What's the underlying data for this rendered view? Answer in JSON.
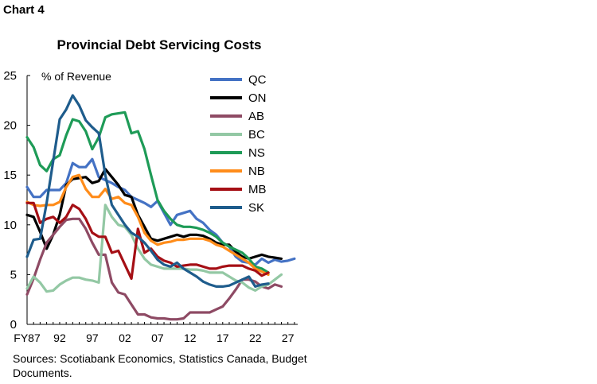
{
  "page": {
    "chart_label": "Chart 4",
    "title": "Provincial Debt Servicing Costs",
    "sources": "Sources: Scotiabank Economics, Statistics Canada, Budget Documents."
  },
  "chart_data": {
    "type": "line",
    "title": "Provincial Debt Servicing Costs",
    "ylabel": "% of Revenue",
    "xlabel": "",
    "x_tick_labels": [
      "FY87",
      "92",
      "97",
      "02",
      "07",
      "12",
      "17",
      "22",
      "27"
    ],
    "x_tick_years": [
      1987,
      1992,
      1997,
      2002,
      2007,
      2012,
      2017,
      2022,
      2027
    ],
    "xlim": [
      1987,
      2028.5
    ],
    "ylim": [
      0,
      25
    ],
    "y_ticks": [
      0,
      5,
      10,
      15,
      20,
      25
    ],
    "grid": false,
    "legend": "top-right",
    "series": [
      {
        "name": "QC",
        "color": "#4472C4",
        "x": [
          1987,
          1988,
          1989,
          1990,
          1991,
          1992,
          1993,
          1994,
          1995,
          1996,
          1997,
          1998,
          1999,
          2000,
          2001,
          2002,
          2003,
          2004,
          2005,
          2006,
          2007,
          2008,
          2009,
          2010,
          2011,
          2012,
          2013,
          2014,
          2015,
          2016,
          2017,
          2018,
          2019,
          2020,
          2021,
          2022,
          2023,
          2024,
          2025,
          2026,
          2027,
          2028
        ],
        "y": [
          13.8,
          12.8,
          12.8,
          13.5,
          13.5,
          13.5,
          14.2,
          16.2,
          15.8,
          15.8,
          16.6,
          14.8,
          14.5,
          14.2,
          13.8,
          13.5,
          12.8,
          12.5,
          12.2,
          11.8,
          12.4,
          11.2,
          10,
          11,
          11.2,
          11.4,
          10.6,
          10.2,
          9.5,
          9,
          8.2,
          7.8,
          6.8,
          6.3,
          6.2,
          6,
          6.6,
          6.2,
          6.5,
          6.3,
          6.4,
          6.6
        ]
      },
      {
        "name": "ON",
        "color": "#000000",
        "x": [
          1987,
          1988,
          1989,
          1990,
          1991,
          1992,
          1993,
          1994,
          1995,
          1996,
          1997,
          1998,
          1999,
          2000,
          2001,
          2002,
          2003,
          2004,
          2005,
          2006,
          2007,
          2008,
          2009,
          2010,
          2011,
          2012,
          2013,
          2014,
          2015,
          2016,
          2017,
          2018,
          2019,
          2020,
          2021,
          2022,
          2023,
          2024,
          2025,
          2026
        ],
        "y": [
          11,
          10.8,
          9.3,
          7.6,
          9,
          11,
          14,
          14.6,
          14.7,
          14.8,
          14.2,
          14.4,
          15.6,
          14.8,
          14,
          13,
          12.8,
          11,
          9.8,
          8.6,
          8.4,
          8.6,
          8.8,
          9,
          8.8,
          9,
          9,
          8.9,
          8.6,
          8.2,
          8,
          8,
          7.3,
          6.8,
          6.6,
          6.8,
          7,
          6.8,
          6.7,
          6.6
        ]
      },
      {
        "name": "AB",
        "color": "#8E4A64",
        "x": [
          1987,
          1988,
          1989,
          1990,
          1991,
          1992,
          1993,
          1994,
          1995,
          1996,
          1997,
          1998,
          1999,
          2000,
          2001,
          2002,
          2003,
          2004,
          2005,
          2006,
          2007,
          2008,
          2009,
          2010,
          2011,
          2012,
          2013,
          2014,
          2015,
          2016,
          2017,
          2018,
          2019,
          2020,
          2021,
          2022,
          2023,
          2024,
          2025,
          2026
        ],
        "y": [
          3,
          4.6,
          6.5,
          8.2,
          9,
          9.8,
          10.5,
          10.6,
          10.6,
          9.6,
          8.2,
          7,
          7,
          4.2,
          3.2,
          3,
          2,
          1,
          1,
          0.7,
          0.6,
          0.6,
          0.5,
          0.5,
          0.6,
          1.2,
          1.2,
          1.2,
          1.2,
          1.5,
          1.8,
          2.6,
          3.5,
          4.5,
          4.5,
          4.3,
          3.8,
          3.6,
          4,
          3.8
        ]
      },
      {
        "name": "BC",
        "color": "#93C8A4",
        "x": [
          1987,
          1988,
          1989,
          1990,
          1991,
          1992,
          1993,
          1994,
          1995,
          1996,
          1997,
          1998,
          1999,
          2000,
          2001,
          2002,
          2003,
          2004,
          2005,
          2006,
          2007,
          2008,
          2009,
          2010,
          2011,
          2012,
          2013,
          2014,
          2015,
          2016,
          2017,
          2018,
          2019,
          2020,
          2021,
          2022,
          2023,
          2024,
          2025,
          2026
        ],
        "y": [
          3.6,
          4.8,
          4.2,
          3.3,
          3.4,
          4,
          4.4,
          4.7,
          4.7,
          4.5,
          4.4,
          4.2,
          12,
          10.8,
          10,
          9.8,
          9,
          7.6,
          6.6,
          6,
          5.8,
          5.6,
          5.6,
          5.6,
          5.6,
          5.5,
          5.5,
          5.4,
          5.2,
          5.2,
          5.2,
          4.8,
          4.4,
          4.2,
          3.7,
          3.4,
          3.8,
          4,
          4.5,
          5
        ]
      },
      {
        "name": "NS",
        "color": "#1E9B57",
        "x": [
          1987,
          1988,
          1989,
          1990,
          1991,
          1992,
          1993,
          1994,
          1995,
          1996,
          1997,
          1998,
          1999,
          2000,
          2001,
          2002,
          2003,
          2004,
          2005,
          2006,
          2007,
          2008,
          2009,
          2010,
          2011,
          2012,
          2013,
          2014,
          2015,
          2016,
          2017,
          2018,
          2019,
          2020,
          2021,
          2022,
          2023,
          2024
        ],
        "y": [
          18.8,
          17.8,
          16,
          15.4,
          16.6,
          17,
          19,
          20.6,
          20.4,
          19.4,
          17.6,
          18.8,
          20.8,
          21.1,
          21.2,
          21.3,
          19.2,
          19.4,
          17.6,
          15,
          12.5,
          11.4,
          10.6,
          10,
          9.8,
          9.8,
          9.7,
          9.5,
          9.2,
          8.8,
          8.2,
          7.8,
          7.5,
          7.2,
          6.6,
          5.8,
          5.6,
          5.2
        ]
      },
      {
        "name": "NB",
        "color": "#FF8C1A",
        "x": [
          1987,
          1988,
          1989,
          1990,
          1991,
          1992,
          1993,
          1994,
          1995,
          1996,
          1997,
          1998,
          1999,
          2000,
          2001,
          2002,
          2003,
          2004,
          2005,
          2006,
          2007,
          2008,
          2009,
          2010,
          2011,
          2012,
          2013,
          2014,
          2015,
          2016,
          2017,
          2018,
          2019,
          2020,
          2021,
          2022,
          2023,
          2024
        ],
        "y": [
          12.3,
          12,
          11.9,
          12,
          12,
          12.3,
          13.8,
          14.8,
          15,
          13.6,
          12.8,
          12.8,
          13.6,
          12.6,
          12.8,
          12.2,
          12,
          10.8,
          9.2,
          8.4,
          8,
          8.2,
          8.3,
          8.5,
          8.5,
          8.6,
          8.6,
          8.6,
          8.4,
          8,
          7.8,
          7.4,
          7,
          6.6,
          6.2,
          5.6,
          5.3,
          5
        ]
      },
      {
        "name": "MB",
        "color": "#A50F15",
        "x": [
          1987,
          1988,
          1989,
          1990,
          1991,
          1992,
          1993,
          1994,
          1995,
          1996,
          1997,
          1998,
          1999,
          2000,
          2001,
          2002,
          2003,
          2004,
          2005,
          2006,
          2007,
          2008,
          2009,
          2010,
          2011,
          2012,
          2013,
          2014,
          2015,
          2016,
          2017,
          2018,
          2019,
          2020,
          2021,
          2022,
          2023,
          2024
        ],
        "y": [
          12.2,
          12.2,
          10.2,
          10.6,
          10.8,
          10.2,
          10.8,
          12,
          11.6,
          10.6,
          9.2,
          8.8,
          8.8,
          7.2,
          7.4,
          6,
          4.6,
          9.6,
          7.2,
          7.6,
          6.8,
          6.4,
          6.2,
          5.8,
          5.9,
          6,
          6,
          5.8,
          5.6,
          5.6,
          5.8,
          5.9,
          5.9,
          5.9,
          5.6,
          5.4,
          4.9,
          5.2
        ]
      },
      {
        "name": "SK",
        "color": "#1E5C8C",
        "x": [
          1987,
          1988,
          1989,
          1990,
          1991,
          1992,
          1993,
          1994,
          1995,
          1996,
          1997,
          1998,
          1999,
          2000,
          2001,
          2002,
          2003,
          2004,
          2005,
          2006,
          2007,
          2008,
          2009,
          2010,
          2011,
          2012,
          2013,
          2014,
          2015,
          2016,
          2017,
          2018,
          2019,
          2020,
          2021,
          2022,
          2023,
          2024
        ],
        "y": [
          6.8,
          8.5,
          8.6,
          12.2,
          16.4,
          20.6,
          21.6,
          23,
          22,
          20.5,
          19.8,
          19.2,
          15,
          12,
          11,
          10,
          9.2,
          8.8,
          8.2,
          7.4,
          6.5,
          6,
          5.8,
          6.2,
          5.6,
          5.2,
          4.8,
          4.3,
          4,
          3.8,
          3.8,
          3.9,
          4.2,
          4.5,
          4.8,
          3.8,
          4,
          4.1
        ]
      }
    ]
  }
}
